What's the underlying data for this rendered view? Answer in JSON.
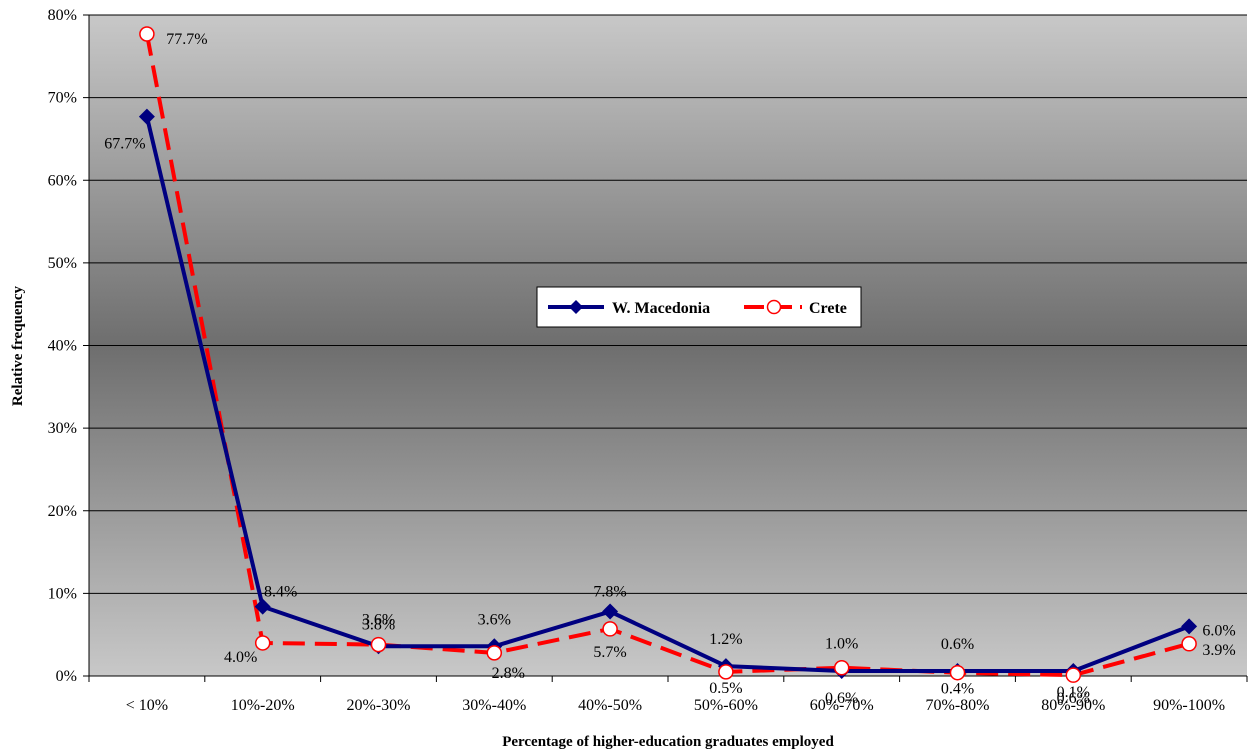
{
  "chart_data": {
    "type": "line",
    "title": "",
    "xlabel": "Percentage of higher-education graduates employed",
    "ylabel": "Relative frequency",
    "categories": [
      "< 10%",
      "10%-20%",
      "20%-30%",
      "30%-40%",
      "40%-50%",
      "50%-60%",
      "60%-70%",
      "70%-80%",
      "80%-90%",
      "90%-100%"
    ],
    "ylim": [
      0,
      80
    ],
    "yticks": [
      "0%",
      "10%",
      "20%",
      "30%",
      "40%",
      "50%",
      "60%",
      "70%",
      "80%"
    ],
    "grid": true,
    "legend_position": "center",
    "series": [
      {
        "name": "W. Macedonia",
        "color": "#000080",
        "marker": "diamond",
        "values": [
          67.7,
          8.4,
          3.6,
          3.6,
          7.8,
          1.2,
          0.6,
          0.6,
          0.6,
          6.0
        ],
        "labels": [
          "67.7%",
          "8.4%",
          "3.6%",
          "3.6%",
          "7.8%",
          "1.2%",
          "0.6%",
          "0.6%",
          "0.6%",
          "6.0%"
        ]
      },
      {
        "name": "Crete",
        "color": "#ff0000",
        "marker": "circle",
        "values": [
          77.7,
          4.0,
          3.8,
          2.8,
          5.7,
          0.5,
          1.0,
          0.4,
          0.1,
          3.9
        ],
        "labels": [
          "77.7%",
          "4.0%",
          "3.8%",
          "2.8%",
          "5.7%",
          "0.5%",
          "1.0%",
          "0.4%",
          "0.1%",
          "3.9%"
        ]
      }
    ]
  }
}
